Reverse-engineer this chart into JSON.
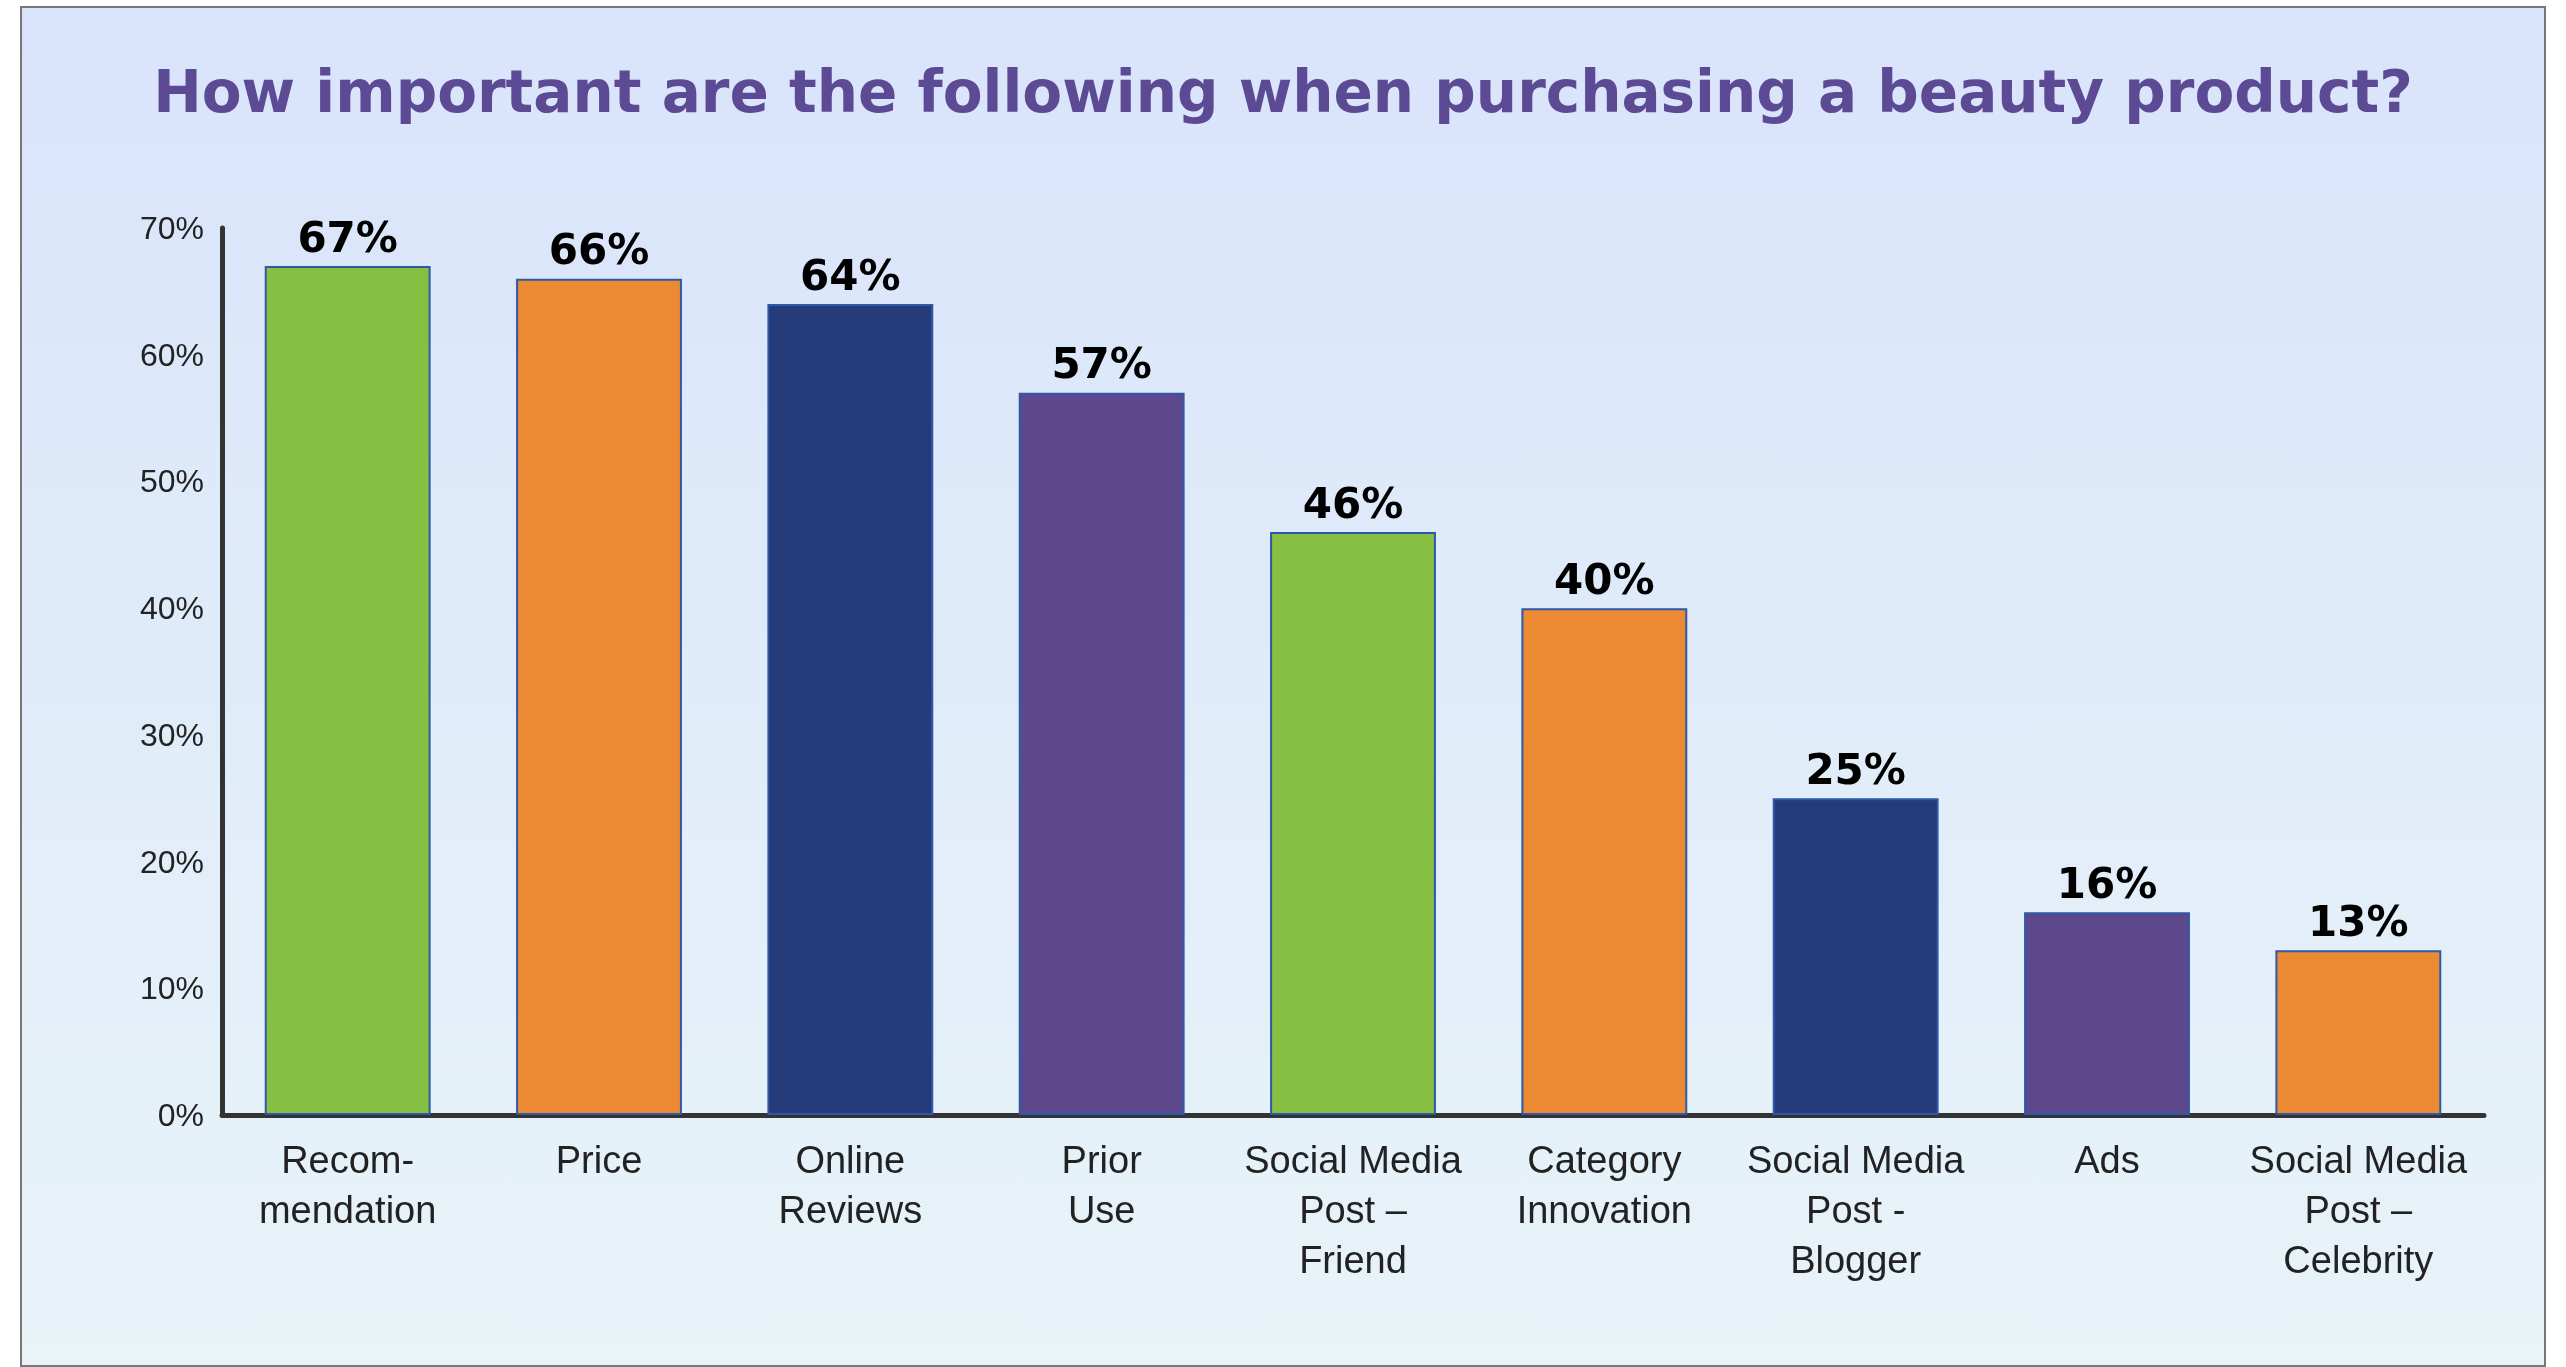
{
  "chart_data": {
    "type": "bar",
    "title": "How important are the following when purchasing a beauty product?",
    "categories": [
      "Recom-\nmendation",
      "Price",
      "Online\nReviews",
      "Prior\nUse",
      "Social Media\nPost –\nFriend",
      "Category\nInnovation",
      "Social Media\nPost -\nBlogger",
      "Ads",
      "Social Media\nPost –\nCelebrity"
    ],
    "values": [
      67,
      66,
      64,
      57,
      46,
      40,
      25,
      16,
      13
    ],
    "colors": [
      "#86bf42",
      "#eb8a33",
      "#253b7a",
      "#5c488a",
      "#86bf42",
      "#eb8a33",
      "#253b7a",
      "#5c488a",
      "#eb8a33"
    ],
    "value_labels": [
      "67%",
      "66%",
      "64%",
      "57%",
      "46%",
      "40%",
      "25%",
      "16%",
      "13%"
    ],
    "ylim": [
      0,
      70
    ],
    "yticks": [
      {
        "value": 0,
        "label": "0%"
      },
      {
        "value": 10,
        "label": "10%"
      },
      {
        "value": 20,
        "label": "20%"
      },
      {
        "value": 30,
        "label": "30%"
      },
      {
        "value": 40,
        "label": "40%"
      },
      {
        "value": 50,
        "label": "50%"
      },
      {
        "value": 60,
        "label": "60%"
      },
      {
        "value": 70,
        "label": "70%"
      }
    ],
    "grid": false
  }
}
